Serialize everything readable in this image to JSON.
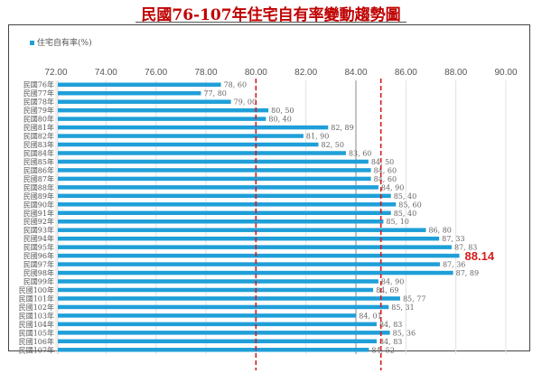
{
  "chart_data": {
    "type": "bar",
    "orientation": "horizontal",
    "title": "民國76-107年住宅自有率變動趨勢圖",
    "legend": {
      "label": "住宅自有率(%)",
      "position": "top-left",
      "color": "#1f9fd8"
    },
    "xlim": [
      72,
      90
    ],
    "xticks": [
      "72.00",
      "74.00",
      "76.00",
      "78.00",
      "80.00",
      "82.00",
      "84.00",
      "86.00",
      "88.00",
      "90.00"
    ],
    "grid": true,
    "reference_lines": [
      {
        "value": 80.0,
        "style": "dashed",
        "color": "#d21c1c"
      },
      {
        "value": 85.0,
        "style": "dashed",
        "color": "#d21c1c"
      }
    ],
    "emphasized_gridline": 84.0,
    "highlight": {
      "category": "民國96年",
      "label": "88.14",
      "color": "#d21c1c"
    },
    "bar_color": "#1f9fd8",
    "categories": [
      "民國76年",
      "民國77年",
      "民國78年",
      "民國79年",
      "民國80年",
      "民國81年",
      "民國82年",
      "民國83年",
      "民國84年",
      "民國85年",
      "民國86年",
      "民國87年",
      "民國88年",
      "民國89年",
      "民國90年",
      "民國91年",
      "民國92年",
      "民國93年",
      "民國94年",
      "民國95年",
      "民國96年",
      "民國97年",
      "民國98年",
      "民國99年",
      "民國100年",
      "民國101年",
      "民國102年",
      "民國103年",
      "民國104年",
      "民國105年",
      "民國106年",
      "民國107年"
    ],
    "values": [
      78.6,
      77.8,
      79.0,
      80.5,
      80.4,
      82.89,
      81.9,
      82.5,
      83.6,
      84.5,
      84.6,
      84.6,
      84.9,
      85.4,
      85.6,
      85.4,
      85.1,
      86.8,
      87.33,
      87.83,
      88.14,
      87.36,
      87.89,
      84.9,
      84.69,
      85.77,
      85.31,
      84.01,
      84.83,
      85.36,
      84.83,
      84.52
    ],
    "value_labels": [
      "78.60",
      "77.80",
      "79.00",
      "80.50",
      "80.40",
      "82.89",
      "81.90",
      "82.50",
      "83.60",
      "84.50",
      "84.60",
      "84.60",
      "84.90",
      "85.40",
      "85.60",
      "85.40",
      "85.10",
      "86.80",
      "87.33",
      "87.83",
      "88.14",
      "87.36",
      "87.89",
      "84.90",
      "84.69",
      "85.77",
      "85.31",
      "84.01",
      "84.83",
      "85.36",
      "84.83",
      "84.52"
    ]
  }
}
